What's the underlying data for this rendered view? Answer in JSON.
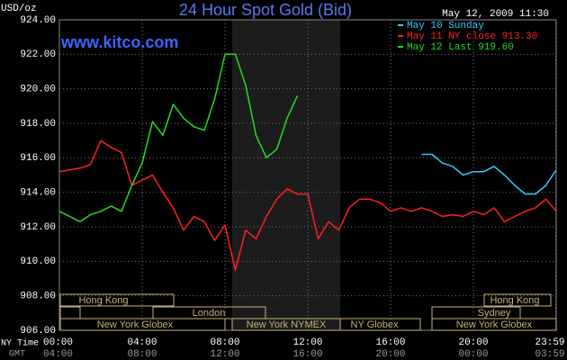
{
  "chart_data": {
    "type": "line",
    "title": "24 Hour Spot Gold (Bid)",
    "y_label": "USD/oz",
    "timestamp": "May 12, 2009 11:30",
    "watermark": "www.kitco.com",
    "x_row_label": "NY Time",
    "x2_row_label": "GMT",
    "sessions": [
      "Hong Kong",
      "London",
      "New York Globex",
      "New York NYMEX",
      "NY Globex",
      "Hong Kong",
      "Sydney",
      "New York Globex"
    ],
    "xlim": [
      0,
      24
    ],
    "xticks": [
      {
        "value": 0,
        "label": "00:00"
      },
      {
        "value": 4,
        "label": "04:00"
      },
      {
        "value": 8,
        "label": "08:00"
      },
      {
        "value": 12,
        "label": "12:00"
      },
      {
        "value": 16,
        "label": "16:00"
      },
      {
        "value": 20,
        "label": "20:00"
      },
      {
        "value": 23.98,
        "label": "23:59"
      }
    ],
    "gmt_labels": [
      "04:00",
      "08:00",
      "12:00",
      "16:00",
      "20:00",
      "00:00",
      "03:59"
    ],
    "ylim": [
      906,
      924
    ],
    "yticks": [
      {
        "value": 906,
        "label": "906.00"
      },
      {
        "value": 908,
        "label": "908.00"
      },
      {
        "value": 910,
        "label": "910.00"
      },
      {
        "value": 912,
        "label": "912.00"
      },
      {
        "value": 914,
        "label": "914.00"
      },
      {
        "value": 916,
        "label": "916.00"
      },
      {
        "value": 918,
        "label": "918.00"
      },
      {
        "value": 920,
        "label": "920.00"
      },
      {
        "value": 922,
        "label": "922.00"
      },
      {
        "value": 924,
        "label": "924.00"
      }
    ],
    "grid": true,
    "series": [
      {
        "name": "May 10 Sunday",
        "color": "#33ccff",
        "x": [
          17.5,
          18,
          18.5,
          19,
          19.5,
          20,
          20.5,
          21,
          21.5,
          22,
          22.5,
          23,
          23.5,
          24
        ],
        "values": [
          916.2,
          916.2,
          915.7,
          915.5,
          915.0,
          915.2,
          915.2,
          915.5,
          915.0,
          914.4,
          913.9,
          913.9,
          914.4,
          915.3
        ]
      },
      {
        "name": "May 11 NY close 913.30",
        "color": "#ff2020",
        "x": [
          0,
          0.5,
          1,
          1.5,
          2,
          2.5,
          3,
          3.5,
          4,
          4.5,
          5,
          5.5,
          6,
          6.5,
          7,
          7.5,
          8,
          8.5,
          9,
          9.5,
          10,
          10.5,
          11,
          11.5,
          12,
          12.5,
          13,
          13.5,
          14,
          14.5,
          15,
          15.5,
          16,
          16.5,
          17,
          17.5,
          18,
          18.5,
          19,
          19.5,
          20,
          20.5,
          21,
          21.5,
          22,
          22.5,
          23,
          23.5,
          24
        ],
        "values": [
          915.2,
          915.3,
          915.4,
          915.6,
          917.0,
          916.6,
          916.3,
          914.4,
          914.7,
          915.0,
          914.0,
          913.1,
          911.8,
          912.6,
          912.3,
          911.2,
          912.1,
          909.5,
          911.8,
          911.3,
          912.6,
          913.6,
          914.2,
          913.9,
          913.9,
          911.3,
          912.3,
          911.8,
          913.1,
          913.6,
          913.6,
          913.4,
          912.9,
          913.1,
          912.9,
          913.1,
          912.9,
          912.6,
          912.7,
          912.6,
          912.9,
          912.7,
          913.1,
          912.3,
          912.6,
          912.9,
          913.1,
          913.6,
          912.9
        ]
      },
      {
        "name": "May 12 Last 919.60",
        "color": "#22dd22",
        "x": [
          0,
          0.5,
          1,
          1.5,
          2,
          2.5,
          3,
          3.5,
          4,
          4.5,
          5,
          5.5,
          6,
          6.5,
          7,
          7.5,
          8,
          8.5,
          9,
          9.5,
          10,
          10.5,
          11,
          11.5
        ],
        "values": [
          912.9,
          912.6,
          912.3,
          912.7,
          912.9,
          913.2,
          912.9,
          914.4,
          915.7,
          918.1,
          917.3,
          919.1,
          918.3,
          917.8,
          917.6,
          919.4,
          922.0,
          922.0,
          920.2,
          917.3,
          916.0,
          916.5,
          918.3,
          919.6
        ]
      }
    ]
  }
}
